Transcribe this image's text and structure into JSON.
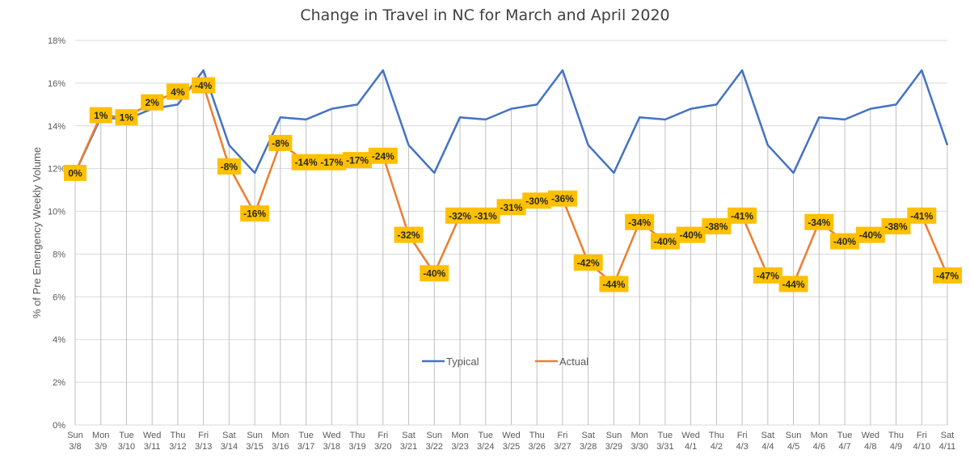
{
  "chart_data": {
    "type": "line",
    "title": "Change in Travel in NC for March and April 2020",
    "ylabel": "% of Pre Emergency Weekly Volume",
    "xlabel": "",
    "ylim": [
      0,
      18
    ],
    "yticks": [
      "0%",
      "2%",
      "4%",
      "6%",
      "8%",
      "10%",
      "12%",
      "14%",
      "16%",
      "18%"
    ],
    "ytick_values": [
      0,
      2,
      4,
      6,
      8,
      10,
      12,
      14,
      16,
      18
    ],
    "grid": true,
    "legend_position": "center",
    "categories": [
      {
        "day": "Sun",
        "date": "3/8"
      },
      {
        "day": "Mon",
        "date": "3/9"
      },
      {
        "day": "Tue",
        "date": "3/10"
      },
      {
        "day": "Wed",
        "date": "3/11"
      },
      {
        "day": "Thu",
        "date": "3/12"
      },
      {
        "day": "Fri",
        "date": "3/13"
      },
      {
        "day": "Sat",
        "date": "3/14"
      },
      {
        "day": "Sun",
        "date": "3/15"
      },
      {
        "day": "Mon",
        "date": "3/16"
      },
      {
        "day": "Tue",
        "date": "3/17"
      },
      {
        "day": "Wed",
        "date": "3/18"
      },
      {
        "day": "Thu",
        "date": "3/19"
      },
      {
        "day": "Fri",
        "date": "3/20"
      },
      {
        "day": "Sat",
        "date": "3/21"
      },
      {
        "day": "Sun",
        "date": "3/22"
      },
      {
        "day": "Mon",
        "date": "3/23"
      },
      {
        "day": "Tue",
        "date": "3/24"
      },
      {
        "day": "Wed",
        "date": "3/25"
      },
      {
        "day": "Thu",
        "date": "3/26"
      },
      {
        "day": "Fri",
        "date": "3/27"
      },
      {
        "day": "Sat",
        "date": "3/28"
      },
      {
        "day": "Sun",
        "date": "3/29"
      },
      {
        "day": "Mon",
        "date": "3/30"
      },
      {
        "day": "Tue",
        "date": "3/31"
      },
      {
        "day": "Wed",
        "date": "4/1"
      },
      {
        "day": "Thu",
        "date": "4/2"
      },
      {
        "day": "Fri",
        "date": "4/3"
      },
      {
        "day": "Sat",
        "date": "4/4"
      },
      {
        "day": "Sun",
        "date": "4/5"
      },
      {
        "day": "Mon",
        "date": "4/6"
      },
      {
        "day": "Tue",
        "date": "4/7"
      },
      {
        "day": "Wed",
        "date": "4/8"
      },
      {
        "day": "Thu",
        "date": "4/9"
      },
      {
        "day": "Fri",
        "date": "4/10"
      },
      {
        "day": "Sat",
        "date": "4/11"
      }
    ],
    "series": [
      {
        "name": "Typical",
        "color": "#4472C4",
        "values": [
          11.8,
          14.4,
          14.3,
          14.8,
          15.0,
          16.6,
          13.1,
          11.8,
          14.4,
          14.3,
          14.8,
          15.0,
          16.6,
          13.1,
          11.8,
          14.4,
          14.3,
          14.8,
          15.0,
          16.6,
          13.1,
          11.8,
          14.4,
          14.3,
          14.8,
          15.0,
          16.6,
          13.1,
          11.8,
          14.4,
          14.3,
          14.8,
          15.0,
          16.6,
          13.1
        ]
      },
      {
        "name": "Actual",
        "color": "#ED7D31",
        "values": [
          11.8,
          14.5,
          14.4,
          15.1,
          15.6,
          15.9,
          12.1,
          9.9,
          13.2,
          12.3,
          12.3,
          12.4,
          12.6,
          8.9,
          7.1,
          9.8,
          9.8,
          10.2,
          10.5,
          10.6,
          7.6,
          6.6,
          9.5,
          8.6,
          8.9,
          9.3,
          9.8,
          7.0,
          6.6,
          9.5,
          8.6,
          8.9,
          9.3,
          9.8,
          7.0
        ],
        "labels": [
          "0%",
          "1%",
          "1%",
          "2%",
          "4%",
          "-4%",
          "-8%",
          "-16%",
          "-8%",
          "-14%",
          "-17%",
          "-17%",
          "-24%",
          "-32%",
          "-40%",
          "-32%",
          "-31%",
          "-31%",
          "-30%",
          "-36%",
          "-42%",
          "-44%",
          "-34%",
          "-40%",
          "-40%",
          "-38%",
          "-41%",
          "-47%",
          "-44%",
          "-34%",
          "-40%",
          "-40%",
          "-38%",
          "-41%",
          "-47%"
        ]
      }
    ],
    "label_box_color": "#FFC000"
  }
}
